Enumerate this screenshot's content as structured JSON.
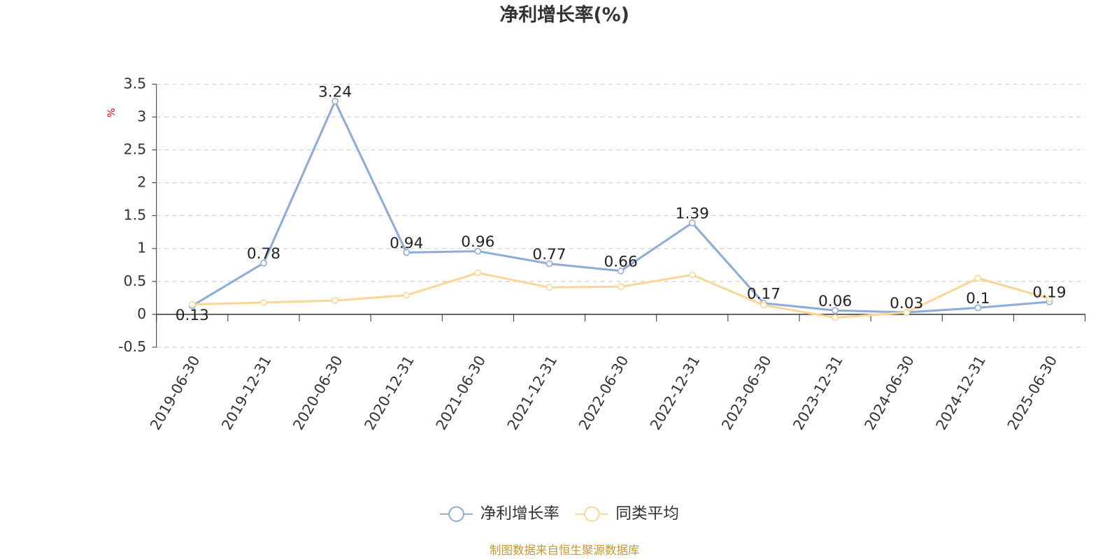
{
  "chart_data": {
    "type": "line",
    "title": "净利增长率(%)",
    "y_label": "%",
    "source": "制图数据来自恒生聚源数据库",
    "categories": [
      "2019-06-30",
      "2019-12-31",
      "2020-06-30",
      "2020-12-31",
      "2021-06-30",
      "2021-12-31",
      "2022-06-30",
      "2022-12-31",
      "2023-06-30",
      "2023-12-31",
      "2024-06-30",
      "2024-12-31",
      "2025-06-30"
    ],
    "series": [
      {
        "name": "净利增长率",
        "color": "#8eacd8",
        "values": [
          0.13,
          0.78,
          3.24,
          0.94,
          0.96,
          0.77,
          0.66,
          1.39,
          0.17,
          0.06,
          0.03,
          0.1,
          0.19
        ]
      },
      {
        "name": "同类平均",
        "color": "#fad797",
        "values": [
          0.15,
          0.18,
          0.21,
          0.29,
          0.63,
          0.41,
          0.42,
          0.6,
          0.14,
          -0.05,
          0.03,
          0.55,
          0.24
        ]
      }
    ],
    "ylim": [
      -0.5,
      3.5
    ],
    "yticks": [
      -0.5,
      0,
      0.5,
      1,
      1.5,
      2,
      2.5,
      3,
      3.5
    ],
    "grid": true
  }
}
